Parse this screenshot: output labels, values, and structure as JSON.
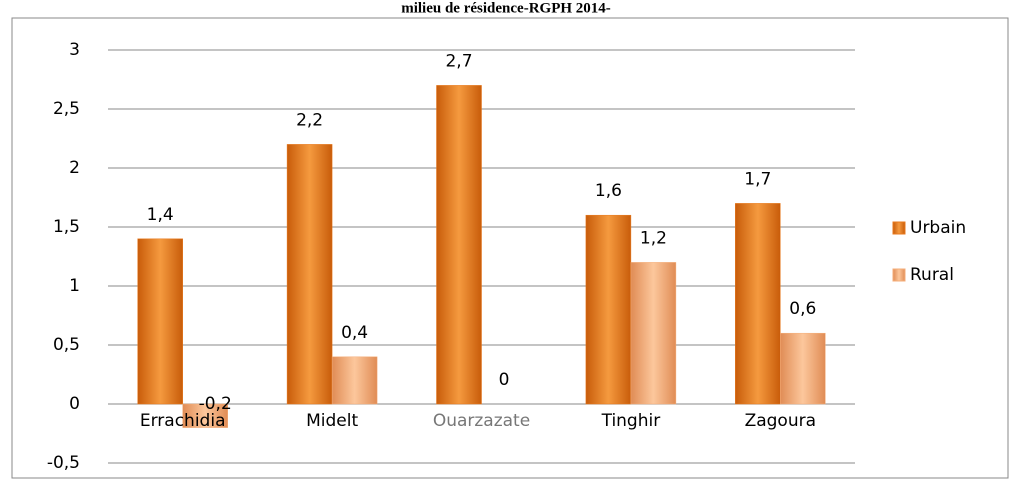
{
  "chart_data": {
    "type": "bar",
    "title": "milieu de résidence-RGPH 2014-",
    "categories": [
      "Errachidia",
      "Midelt",
      "Ouarzazate",
      "Tinghir",
      "Zagoura"
    ],
    "series": [
      {
        "name": "Urbain",
        "color": "#e8791c",
        "values": [
          1.4,
          2.2,
          2.7,
          1.6,
          1.7
        ],
        "value_labels": [
          "1,4",
          "2,2",
          "2,7",
          "1,6",
          "1,7"
        ]
      },
      {
        "name": "Rural",
        "color": "#f4ad78",
        "values": [
          -0.2,
          0.4,
          0,
          1.2,
          0.6
        ],
        "value_labels": [
          "-0,2",
          "0,4",
          "0",
          "1,2",
          "0,6"
        ]
      }
    ],
    "ylim": [
      -0.5,
      3
    ],
    "yticks": [
      {
        "value": -0.5,
        "label": "-0,5"
      },
      0,
      {
        "value": 0.5,
        "label": "0,5"
      },
      1,
      {
        "value": 1.5,
        "label": "1,5"
      },
      2,
      {
        "value": 2.5,
        "label": "2,5"
      },
      3
    ],
    "grid": true,
    "legend": "right"
  }
}
